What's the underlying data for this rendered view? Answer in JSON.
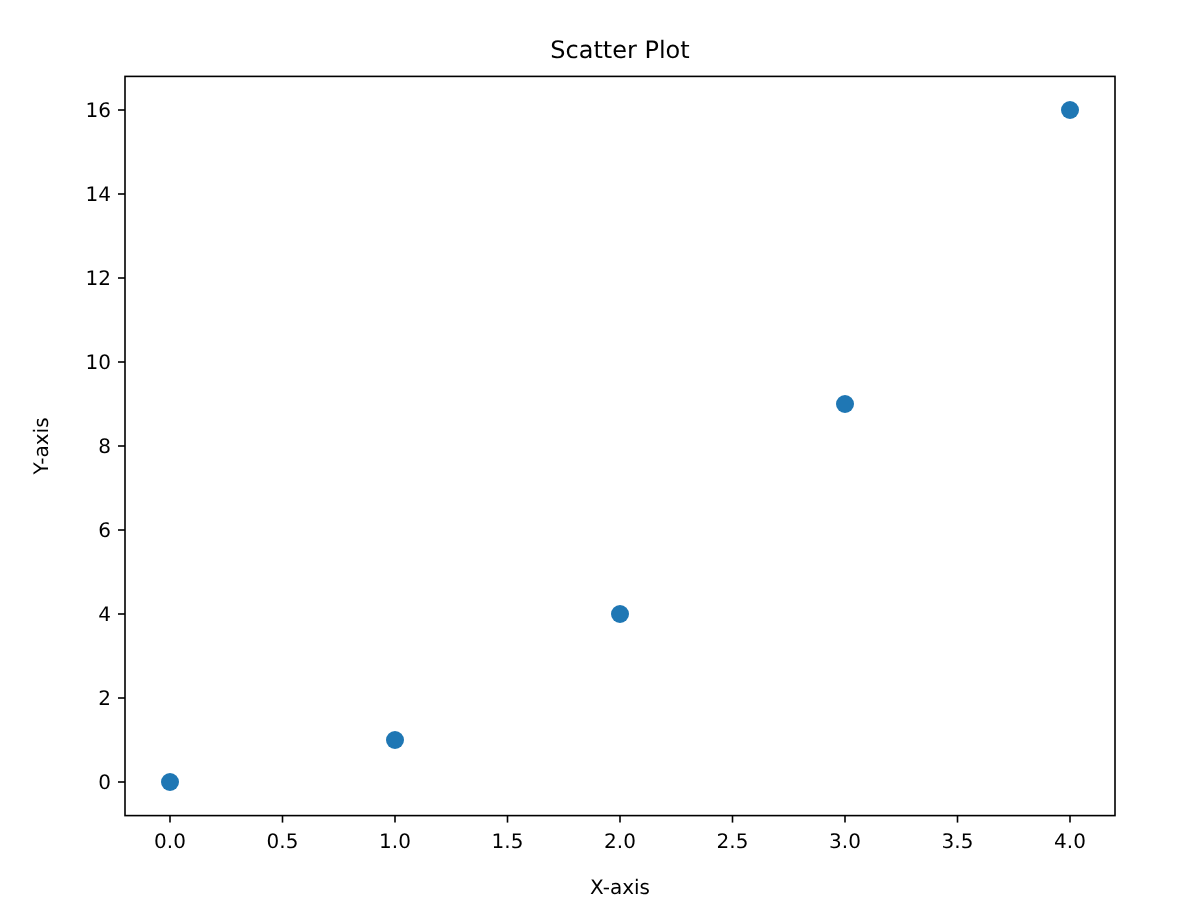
{
  "chart_data": {
    "type": "scatter",
    "title": "Scatter Plot",
    "xlabel": "X-axis",
    "ylabel": "Y-axis",
    "x": [
      0,
      1,
      2,
      3,
      4
    ],
    "series": [
      {
        "color": "#1f77b4",
        "values": [
          0,
          1,
          4,
          9,
          16
        ]
      }
    ],
    "xlim": [
      -0.2,
      4.2
    ],
    "xticks": [
      {
        "value": 0,
        "label": "0.0"
      },
      {
        "value": 0.5,
        "label": "0.5"
      },
      {
        "value": 1,
        "label": "1.0"
      },
      {
        "value": 1.5,
        "label": "1.5"
      },
      {
        "value": 2,
        "label": "2.0"
      },
      {
        "value": 2.5,
        "label": "2.5"
      },
      {
        "value": 3,
        "label": "3.0"
      },
      {
        "value": 3.5,
        "label": "3.5"
      },
      {
        "value": 4,
        "label": "4.0"
      }
    ],
    "ylim": [
      -0.8,
      16.8
    ],
    "yticks": [
      0,
      2,
      4,
      6,
      8,
      10,
      12,
      14,
      16
    ],
    "marker": "circle"
  }
}
